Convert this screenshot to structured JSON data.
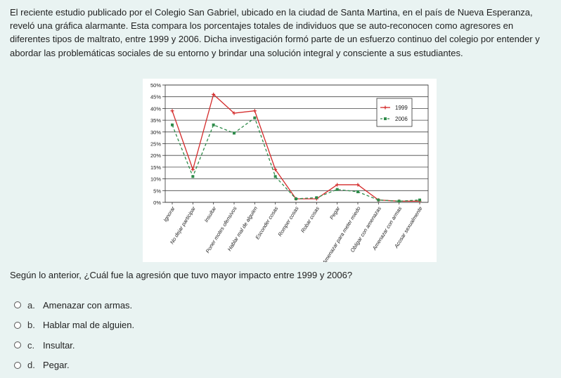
{
  "intro": "El reciente estudio publicado por el Colegio San Gabriel, ubicado en la ciudad de Santa Martina, en el país de Nueva Esperanza, reveló una gráfica alarmante. Esta compara los porcentajes totales de individuos que se auto-reconocen como agresores en diferentes tipos de maltrato, entre 1999 y 2006. Dicha investigación formó parte de un esfuerzo continuo del colegio por entender y abordar las problemáticas sociales de su entorno y brindar una solución integral y consciente a sus estudiantes.",
  "question": "Según lo anterior, ¿Cuál fue la agresión que tuvo mayor impacto entre 1999 y 2006?",
  "options": [
    {
      "letter": "a.",
      "text": "Amenazar con armas."
    },
    {
      "letter": "b.",
      "text": "Hablar mal de alguien."
    },
    {
      "letter": "c.",
      "text": "Insultar."
    },
    {
      "letter": "d.",
      "text": "Pegar."
    }
  ],
  "colors": {
    "series_1999": "#d42a2a",
    "series_2006": "#2e8b4a"
  },
  "chart_data": {
    "type": "line",
    "categories": [
      "Ignorar",
      "No dejar participar",
      "Insultar",
      "Poner motes ofensivos",
      "Hablar mal de alguien",
      "Esconder cosas",
      "Romper cosas",
      "Robar cosas",
      "Pegar",
      "Amenazar para meter miedo",
      "Obligar con amenazas",
      "Amenazar con armas",
      "Acosar sexualmente"
    ],
    "series": [
      {
        "name": "1999",
        "values": [
          39,
          14,
          46,
          38,
          39,
          14,
          1.5,
          1.5,
          7.5,
          7.5,
          1,
          0.5,
          0.5
        ]
      },
      {
        "name": "2006",
        "values": [
          33,
          11,
          33,
          29.5,
          36,
          11,
          1.5,
          2,
          5.5,
          4.5,
          1,
          0.5,
          1
        ]
      }
    ],
    "yticks": [
      "0%",
      "5%",
      "10%",
      "15%",
      "20%",
      "25%",
      "30%",
      "35%",
      "40%",
      "45%",
      "50%"
    ],
    "ylim": [
      0,
      50
    ],
    "legend": "top-right",
    "grid": true
  }
}
